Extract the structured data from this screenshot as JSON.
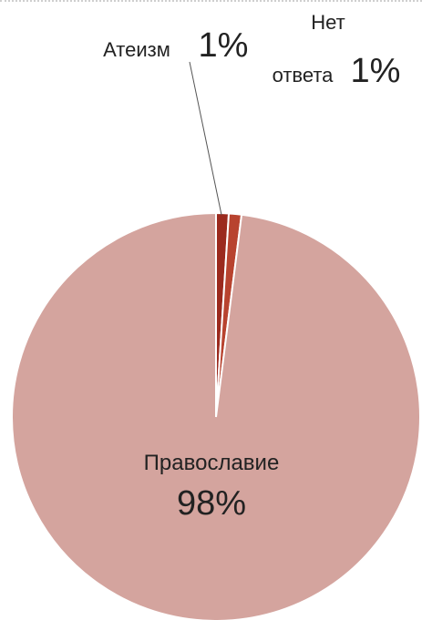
{
  "chart_data": {
    "type": "pie",
    "title": "",
    "slices": [
      {
        "label": "Православие",
        "label_lines": [
          "Православие"
        ],
        "value": 98,
        "value_label": "98%",
        "color": "#d4a49e"
      },
      {
        "label": "Атеизм",
        "label_lines": [
          "Атеизм"
        ],
        "value": 1,
        "value_label": "1%",
        "color": "#9b2a1e"
      },
      {
        "label": "Нет ответа",
        "label_lines": [
          "Нет",
          "ответа"
        ],
        "value": 1,
        "value_label": "1%",
        "color": "#b8432f"
      }
    ],
    "legend": "none",
    "slice_border_color": "#ffffff"
  }
}
